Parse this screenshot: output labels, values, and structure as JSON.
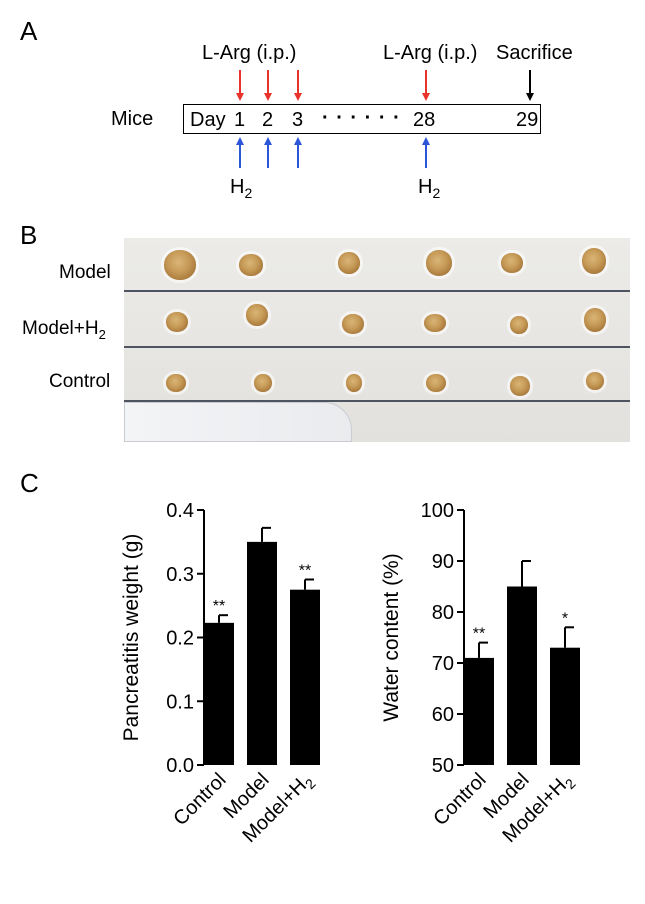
{
  "panelA": {
    "letter": "A",
    "mice_label": "Mice",
    "larg_label_1": "L-Arg (i.p.)",
    "larg_label_2": "L-Arg (i.p.)",
    "sacrifice_label": "Sacrifice",
    "day_label": "Day",
    "days": [
      "1",
      "2",
      "3",
      "28",
      "29"
    ],
    "dots": "· · · · · ·",
    "h2_base": "H",
    "h2_sub": "2",
    "colors": {
      "larg_arrow": "#e8322b",
      "h2_arrow": "#2c56d8",
      "sacrifice_arrow": "#000000"
    }
  },
  "panelB": {
    "letter": "B",
    "rows": [
      {
        "label_base": "Model",
        "label_sub": ""
      },
      {
        "label_base": "Model+H",
        "label_sub": "2"
      },
      {
        "label_base": "Control",
        "label_sub": ""
      }
    ]
  },
  "panelC": {
    "letter": "C"
  },
  "chart_data": [
    {
      "type": "bar",
      "categories": [
        "Control",
        "Model",
        "Model+H2"
      ],
      "category_labels": [
        {
          "base": "Control",
          "sub": ""
        },
        {
          "base": "Model",
          "sub": ""
        },
        {
          "base": "Model+H",
          "sub": "2"
        }
      ],
      "values": [
        0.223,
        0.35,
        0.275
      ],
      "errors": [
        0.012,
        0.022,
        0.016
      ],
      "significance": [
        "**",
        "",
        "**"
      ],
      "ylabel": "Pancreatitis weight (g)",
      "ylim": [
        0.0,
        0.4
      ],
      "yticks": [
        "0.0",
        "0.1",
        "0.2",
        "0.3",
        "0.4"
      ],
      "ytick_values": [
        0.0,
        0.1,
        0.2,
        0.3,
        0.4
      ],
      "grid": false,
      "bar_color": "#000000"
    },
    {
      "type": "bar",
      "categories": [
        "Control",
        "Model",
        "Model+H2"
      ],
      "category_labels": [
        {
          "base": "Control",
          "sub": ""
        },
        {
          "base": "Model",
          "sub": ""
        },
        {
          "base": "Model+H",
          "sub": "2"
        }
      ],
      "values": [
        71,
        85,
        73
      ],
      "errors": [
        3,
        5,
        4
      ],
      "significance": [
        "**",
        "",
        "*"
      ],
      "ylabel": "Water content (%)",
      "ylim": [
        50,
        100
      ],
      "yticks": [
        "50",
        "60",
        "70",
        "80",
        "90",
        "100"
      ],
      "ytick_values": [
        50,
        60,
        70,
        80,
        90,
        100
      ],
      "grid": false,
      "bar_color": "#000000"
    }
  ]
}
